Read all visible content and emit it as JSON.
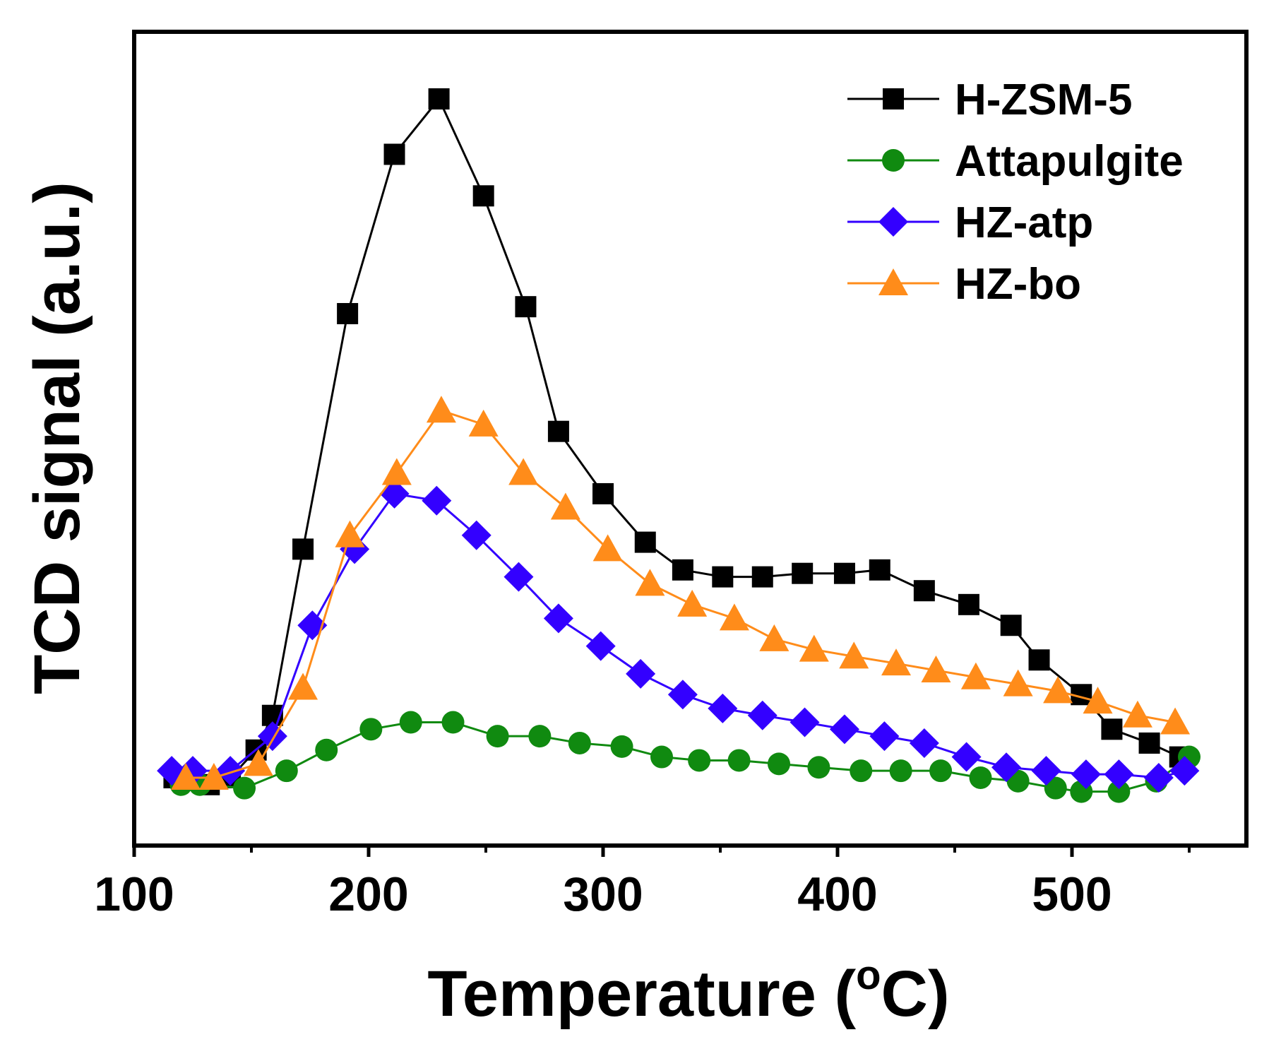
{
  "chart_data": {
    "type": "line",
    "title": "",
    "xlabel": "Temperature (",
    "xlabel_sup": "o",
    "xlabel_tail": "C)",
    "ylabel": "TCD signal (a.u.)",
    "xlim": [
      100,
      580
    ],
    "ylim": [
      -0.02,
      1.1
    ],
    "xticks": [
      100,
      200,
      300,
      400,
      500
    ],
    "xtick_labels": [
      "100",
      "200",
      "300",
      "400",
      "500"
    ],
    "yticks_shown": false,
    "legend_position": "top-right",
    "series": [
      {
        "name": "H-ZSM-5",
        "color": "#000000",
        "marker": "square",
        "x": [
          117,
          123,
          132,
          141,
          152,
          159,
          172,
          191,
          211,
          230,
          249,
          267,
          281,
          300,
          318,
          334,
          351,
          368,
          385,
          403,
          418,
          437,
          456,
          474,
          486,
          504,
          517,
          533,
          546
        ],
        "y": [
          0.05,
          0.05,
          0.04,
          0.05,
          0.09,
          0.14,
          0.38,
          0.72,
          0.95,
          1.03,
          0.89,
          0.73,
          0.55,
          0.46,
          0.39,
          0.35,
          0.34,
          0.34,
          0.345,
          0.345,
          0.35,
          0.32,
          0.3,
          0.27,
          0.22,
          0.17,
          0.12,
          0.1,
          0.08
        ]
      },
      {
        "name": "Attapulgite",
        "color": "#108a10",
        "marker": "circle",
        "x": [
          120,
          128,
          147,
          165,
          182,
          201,
          218,
          236,
          255,
          273,
          290,
          308,
          325,
          341,
          358,
          375,
          392,
          410,
          427,
          444,
          461,
          477,
          493,
          504,
          520,
          536,
          550
        ],
        "y": [
          0.04,
          0.04,
          0.035,
          0.06,
          0.09,
          0.12,
          0.13,
          0.13,
          0.11,
          0.11,
          0.1,
          0.095,
          0.08,
          0.075,
          0.075,
          0.07,
          0.065,
          0.06,
          0.06,
          0.06,
          0.05,
          0.045,
          0.035,
          0.03,
          0.03,
          0.045,
          0.08
        ]
      },
      {
        "name": "HZ-atp",
        "color": "#3300ff",
        "marker": "diamond",
        "x": [
          116,
          125,
          141,
          159,
          176,
          194,
          211,
          229,
          246,
          264,
          281,
          299,
          316,
          334,
          351,
          368,
          386,
          403,
          420,
          437,
          455,
          472,
          489,
          506,
          520,
          537,
          548
        ],
        "y": [
          0.06,
          0.06,
          0.06,
          0.11,
          0.27,
          0.38,
          0.46,
          0.45,
          0.4,
          0.34,
          0.28,
          0.24,
          0.2,
          0.17,
          0.15,
          0.14,
          0.13,
          0.12,
          0.11,
          0.1,
          0.08,
          0.065,
          0.06,
          0.055,
          0.055,
          0.05,
          0.06
        ]
      },
      {
        "name": "HZ-bo",
        "color": "#ff8c1a",
        "marker": "triangle",
        "x": [
          122,
          134,
          153,
          172,
          192,
          212,
          231,
          249,
          266,
          284,
          302,
          320,
          338,
          356,
          373,
          390,
          407,
          425,
          442,
          459,
          477,
          494,
          511,
          528,
          544
        ],
        "y": [
          0.05,
          0.05,
          0.07,
          0.18,
          0.4,
          0.49,
          0.58,
          0.56,
          0.49,
          0.44,
          0.38,
          0.33,
          0.3,
          0.28,
          0.25,
          0.235,
          0.225,
          0.215,
          0.205,
          0.195,
          0.185,
          0.175,
          0.16,
          0.14,
          0.13
        ]
      }
    ]
  }
}
